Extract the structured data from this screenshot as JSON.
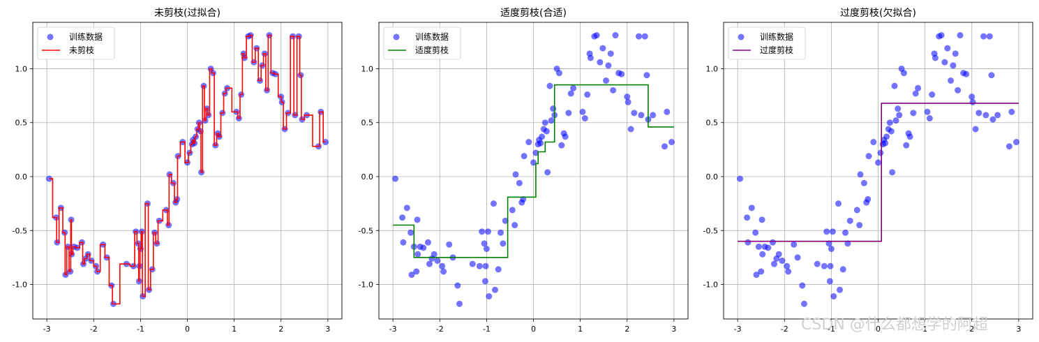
{
  "watermark": "CSDN @什么都想学的阿超",
  "colors": {
    "points": "#0000ff",
    "grid": "#b0b0b0"
  },
  "chart_data": [
    {
      "type": "scatter",
      "title": "未剪枝(过拟合)",
      "xlabel": "",
      "ylabel": "",
      "xlim": [
        -3.3,
        3.3
      ],
      "ylim": [
        -1.32,
        1.43
      ],
      "xticks": [
        -3,
        -2,
        -1,
        0,
        1,
        2,
        3
      ],
      "yticks": [
        -1.0,
        -0.5,
        0.0,
        0.5,
        1.0
      ],
      "grid": true,
      "legend_position": "top-left",
      "legend": [
        "训练数据",
        "未剪枝"
      ],
      "line_color": "#ff0000",
      "series_ref": "shared"
    },
    {
      "type": "scatter",
      "title": "适度剪枝(合适)",
      "xlabel": "",
      "ylabel": "",
      "xlim": [
        -3.3,
        3.3
      ],
      "ylim": [
        -1.32,
        1.43
      ],
      "xticks": [
        -3,
        -2,
        -1,
        0,
        1,
        2,
        3
      ],
      "yticks": [
        -1.0,
        -0.5,
        0.0,
        0.5,
        1.0
      ],
      "grid": true,
      "legend_position": "top-left",
      "legend": [
        "训练数据",
        "适度剪枝"
      ],
      "line_color": "#008000",
      "line": [
        [
          -3.0,
          -0.45
        ],
        [
          -2.55,
          -0.45
        ],
        [
          -2.55,
          -0.75
        ],
        [
          -0.55,
          -0.75
        ],
        [
          -0.55,
          -0.19
        ],
        [
          0.05,
          -0.19
        ],
        [
          0.05,
          0.12
        ],
        [
          0.1,
          0.12
        ],
        [
          0.1,
          0.23
        ],
        [
          0.25,
          0.23
        ],
        [
          0.25,
          0.32
        ],
        [
          0.45,
          0.32
        ],
        [
          0.45,
          0.85
        ],
        [
          2.45,
          0.85
        ],
        [
          2.45,
          0.46
        ],
        [
          3.0,
          0.46
        ]
      ]
    },
    {
      "type": "scatter",
      "title": "过度剪枝(欠拟合)",
      "xlabel": "",
      "ylabel": "",
      "xlim": [
        -3.3,
        3.3
      ],
      "ylim": [
        -1.32,
        1.43
      ],
      "xticks": [
        -3,
        -2,
        -1,
        0,
        1,
        2,
        3
      ],
      "yticks": [
        -1.0,
        -0.5,
        0.0,
        0.5,
        1.0
      ],
      "grid": true,
      "legend_position": "top-left",
      "legend": [
        "训练数据",
        "过度剪枝"
      ],
      "line_color": "#800080",
      "line": [
        [
          -3.0,
          -0.6
        ],
        [
          0.07,
          -0.6
        ],
        [
          0.07,
          0.68
        ],
        [
          3.0,
          0.68
        ]
      ]
    }
  ],
  "points": [
    [
      -2.95,
      -0.02
    ],
    [
      -2.8,
      -0.38
    ],
    [
      -2.78,
      -0.61
    ],
    [
      -2.7,
      -0.29
    ],
    [
      -2.62,
      -0.52
    ],
    [
      -2.6,
      -0.91
    ],
    [
      -2.55,
      -0.65
    ],
    [
      -2.5,
      -0.88
    ],
    [
      -2.48,
      -0.4
    ],
    [
      -2.47,
      -0.72
    ],
    [
      -2.42,
      -0.65
    ],
    [
      -2.35,
      -0.66
    ],
    [
      -2.25,
      -0.61
    ],
    [
      -2.22,
      -0.81
    ],
    [
      -2.17,
      -0.76
    ],
    [
      -2.12,
      -0.72
    ],
    [
      -2.05,
      -0.78
    ],
    [
      -1.95,
      -0.83
    ],
    [
      -1.92,
      -0.88
    ],
    [
      -1.8,
      -0.63
    ],
    [
      -1.72,
      -0.75
    ],
    [
      -1.62,
      -1.01
    ],
    [
      -1.58,
      -1.18
    ],
    [
      -1.3,
      -0.81
    ],
    [
      -1.15,
      -0.83
    ],
    [
      -1.1,
      -0.51
    ],
    [
      -1.05,
      -0.62
    ],
    [
      -1.03,
      -0.97
    ],
    [
      -1.02,
      -0.83
    ],
    [
      -1.0,
      -0.67
    ],
    [
      -0.97,
      -0.51
    ],
    [
      -0.95,
      -1.11
    ],
    [
      -0.85,
      -0.25
    ],
    [
      -0.82,
      -1.05
    ],
    [
      -0.75,
      -0.86
    ],
    [
      -0.7,
      -0.52
    ],
    [
      -0.65,
      -0.62
    ],
    [
      -0.6,
      -0.41
    ],
    [
      -0.45,
      -0.31
    ],
    [
      -0.4,
      -0.45
    ],
    [
      -0.38,
      0.02
    ],
    [
      -0.3,
      -0.06
    ],
    [
      -0.25,
      -0.24
    ],
    [
      -0.22,
      -0.21
    ],
    [
      -0.2,
      0.19
    ],
    [
      -0.1,
      0.32
    ],
    [
      0.0,
      0.13
    ],
    [
      0.05,
      0.22
    ],
    [
      0.1,
      0.3
    ],
    [
      0.12,
      0.34
    ],
    [
      0.15,
      0.31
    ],
    [
      0.18,
      0.37
    ],
    [
      0.22,
      0.44
    ],
    [
      0.25,
      0.5
    ],
    [
      0.28,
      0.42
    ],
    [
      0.3,
      0.04
    ],
    [
      0.35,
      0.84
    ],
    [
      0.38,
      0.52
    ],
    [
      0.42,
      0.63
    ],
    [
      0.45,
      0.57
    ],
    [
      0.5,
      1.0
    ],
    [
      0.55,
      0.96
    ],
    [
      0.6,
      0.29
    ],
    [
      0.65,
      0.4
    ],
    [
      0.68,
      0.37
    ],
    [
      0.75,
      0.59
    ],
    [
      0.8,
      0.77
    ],
    [
      0.85,
      0.82
    ],
    [
      1.05,
      0.6
    ],
    [
      1.1,
      0.54
    ],
    [
      1.15,
      0.76
    ],
    [
      1.2,
      1.14
    ],
    [
      1.22,
      1.1
    ],
    [
      1.3,
      1.3
    ],
    [
      1.35,
      1.31
    ],
    [
      1.42,
      1.06
    ],
    [
      1.48,
      1.19
    ],
    [
      1.55,
      0.89
    ],
    [
      1.6,
      1.03
    ],
    [
      1.65,
      1.14
    ],
    [
      1.7,
      0.8
    ],
    [
      1.75,
      1.31
    ],
    [
      1.82,
      0.96
    ],
    [
      1.88,
      0.95
    ],
    [
      2.0,
      0.74
    ],
    [
      2.02,
      0.69
    ],
    [
      2.08,
      0.44
    ],
    [
      2.15,
      0.59
    ],
    [
      2.25,
      1.3
    ],
    [
      2.3,
      0.57
    ],
    [
      2.38,
      1.3
    ],
    [
      2.42,
      0.94
    ],
    [
      2.45,
      0.53
    ],
    [
      2.55,
      0.57
    ],
    [
      2.8,
      0.28
    ],
    [
      2.85,
      0.6
    ],
    [
      2.95,
      0.32
    ]
  ]
}
